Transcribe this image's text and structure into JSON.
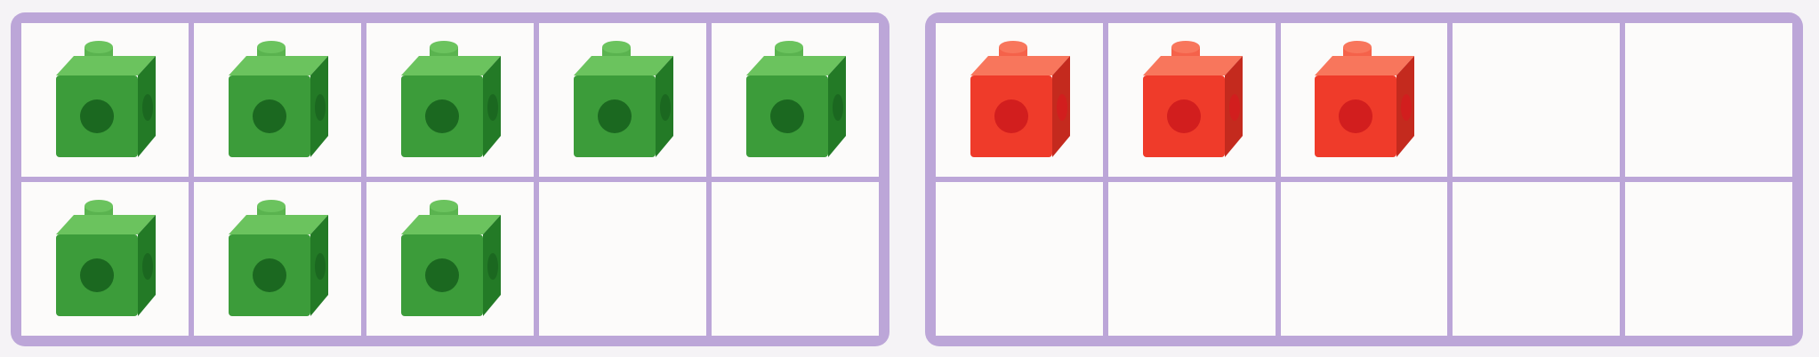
{
  "frames": [
    {
      "color": "green",
      "filled": 8,
      "colors": {
        "front": "#3c9c3a",
        "top": "#6bc35e",
        "side": "#237a26",
        "hole": "#1b6820",
        "stud": "#5ab34f"
      }
    },
    {
      "color": "red",
      "filled": 3,
      "colors": {
        "front": "#ef3b2a",
        "top": "#f8765c",
        "side": "#c42a1e",
        "hole": "#d21e1e",
        "stud": "#f5624a"
      }
    }
  ]
}
